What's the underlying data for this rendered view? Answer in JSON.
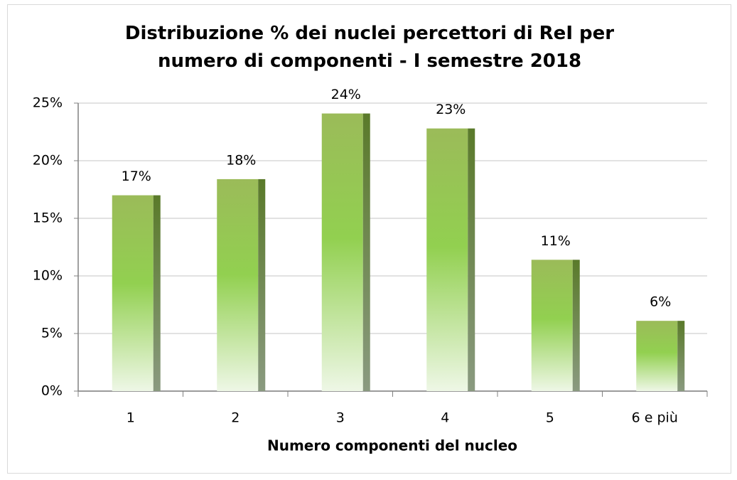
{
  "chart_data": {
    "type": "bar",
    "title": "Distribuzione % dei nuclei percettori di ReI per numero di componenti - I semestre 2018",
    "x_label": "Numero componenti del nucleo",
    "categories": [
      "1",
      "2",
      "3",
      "4",
      "5",
      "6 e più"
    ],
    "values": [
      17.0,
      18.4,
      24.1,
      22.8,
      11.4,
      6.1
    ],
    "value_labels": [
      "17%",
      "18%",
      "24%",
      "23%",
      "11%",
      "6%"
    ],
    "color": "#92d050",
    "ylim": [
      0,
      25
    ],
    "yticks": [
      {
        "value": 0,
        "label": "0%"
      },
      {
        "value": 5,
        "label": "5%"
      },
      {
        "value": 10,
        "label": "10%"
      },
      {
        "value": 15,
        "label": "15%"
      },
      {
        "value": 20,
        "label": "20%"
      },
      {
        "value": 25,
        "label": "25%"
      }
    ],
    "grid": true
  }
}
